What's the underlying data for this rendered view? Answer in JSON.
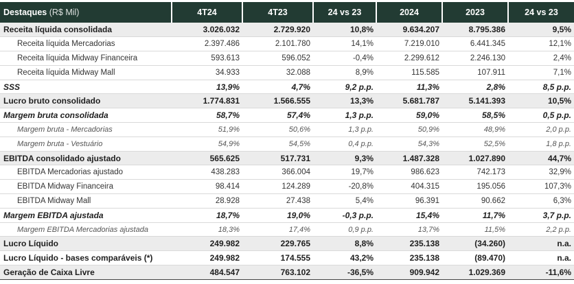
{
  "table": {
    "header": {
      "title": "Destaques",
      "unit": "(R$ Mil)",
      "columns": [
        "4T24",
        "4T23",
        "24 vs 23",
        "2024",
        "2023",
        "24 vs 23"
      ]
    },
    "rows": [
      {
        "style": "bold shade",
        "label": "Receita líquida consolidada",
        "cells": [
          "3.026.032",
          "2.729.920",
          "10,8%",
          "9.634.207",
          "8.795.386",
          "9,5%"
        ]
      },
      {
        "style": "sub",
        "label": "Receita líquida Mercadorias",
        "cells": [
          "2.397.486",
          "2.101.780",
          "14,1%",
          "7.219.010",
          "6.441.345",
          "12,1%"
        ]
      },
      {
        "style": "sub",
        "label": "Receita líquida Midway Financeira",
        "cells": [
          "593.613",
          "596.052",
          "-0,4%",
          "2.299.612",
          "2.246.130",
          "2,4%"
        ]
      },
      {
        "style": "sub",
        "label": "Receita líquida Midway Mall",
        "cells": [
          "34.933",
          "32.088",
          "8,9%",
          "115.585",
          "107.911",
          "7,1%"
        ]
      },
      {
        "style": "bold-italic rule-top",
        "label": "SSS",
        "cells": [
          "13,9%",
          "4,7%",
          "9,2 p.p.",
          "11,3%",
          "2,8%",
          "8,5 p.p."
        ]
      },
      {
        "style": "bold shade",
        "label": "Lucro bruto consolidado",
        "cells": [
          "1.774.831",
          "1.566.555",
          "13,3%",
          "5.681.787",
          "5.141.393",
          "10,5%"
        ]
      },
      {
        "style": "bold-italic",
        "label": "Margem bruta consolidada",
        "cells": [
          "58,7%",
          "57,4%",
          "1,3 p.p.",
          "59,0%",
          "58,5%",
          "0,5 p.p."
        ]
      },
      {
        "style": "italic-sub",
        "label": "Margem bruta - Mercadorias",
        "cells": [
          "51,9%",
          "50,6%",
          "1,3 p.p.",
          "50,9%",
          "48,9%",
          "2,0 p.p."
        ]
      },
      {
        "style": "italic-sub",
        "label": "Margem bruta - Vestuário",
        "cells": [
          "54,9%",
          "54,5%",
          "0,4 p.p.",
          "54,3%",
          "52,5%",
          "1,8 p.p."
        ]
      },
      {
        "style": "bold shade",
        "label": "EBITDA consolidado ajustado",
        "cells": [
          "565.625",
          "517.731",
          "9,3%",
          "1.487.328",
          "1.027.890",
          "44,7%"
        ]
      },
      {
        "style": "sub",
        "label": "EBITDA Mercadorias ajustado",
        "cells": [
          "438.283",
          "366.004",
          "19,7%",
          "986.623",
          "742.173",
          "32,9%"
        ]
      },
      {
        "style": "sub",
        "label": "EBITDA Midway Financeira",
        "cells": [
          "98.414",
          "124.289",
          "-20,8%",
          "404.315",
          "195.056",
          "107,3%"
        ]
      },
      {
        "style": "sub",
        "label": "EBITDA Midway Mall",
        "cells": [
          "28.928",
          "27.438",
          "5,4%",
          "96.391",
          "90.662",
          "6,3%"
        ]
      },
      {
        "style": "bold-italic rule-top",
        "label": "Margem EBITDA ajustada",
        "cells": [
          "18,7%",
          "19,0%",
          "-0,3 p.p.",
          "15,4%",
          "11,7%",
          "3,7 p.p."
        ]
      },
      {
        "style": "italic-sub",
        "label": "Margem EBITDA Mercadorias ajustada",
        "cells": [
          "18,3%",
          "17,4%",
          "0,9 p.p.",
          "13,7%",
          "11,5%",
          "2,2 p.p."
        ]
      },
      {
        "style": "bold shade rule-top",
        "label": "Lucro Líquido",
        "cells": [
          "249.982",
          "229.765",
          "8,8%",
          "235.138",
          "(34.260)",
          "n.a."
        ]
      },
      {
        "style": "bold",
        "label": "Lucro Líquido -  bases comparáveis (*)",
        "cells": [
          "249.982",
          "174.555",
          "43,2%",
          "235.138",
          "(89.470)",
          "n.a."
        ]
      },
      {
        "style": "bold shade rule-bottom",
        "label": "Geração de Caixa Livre",
        "cells": [
          "484.547",
          "763.102",
          "-36,5%",
          "909.942",
          "1.029.369",
          "-11,6%"
        ]
      }
    ]
  }
}
